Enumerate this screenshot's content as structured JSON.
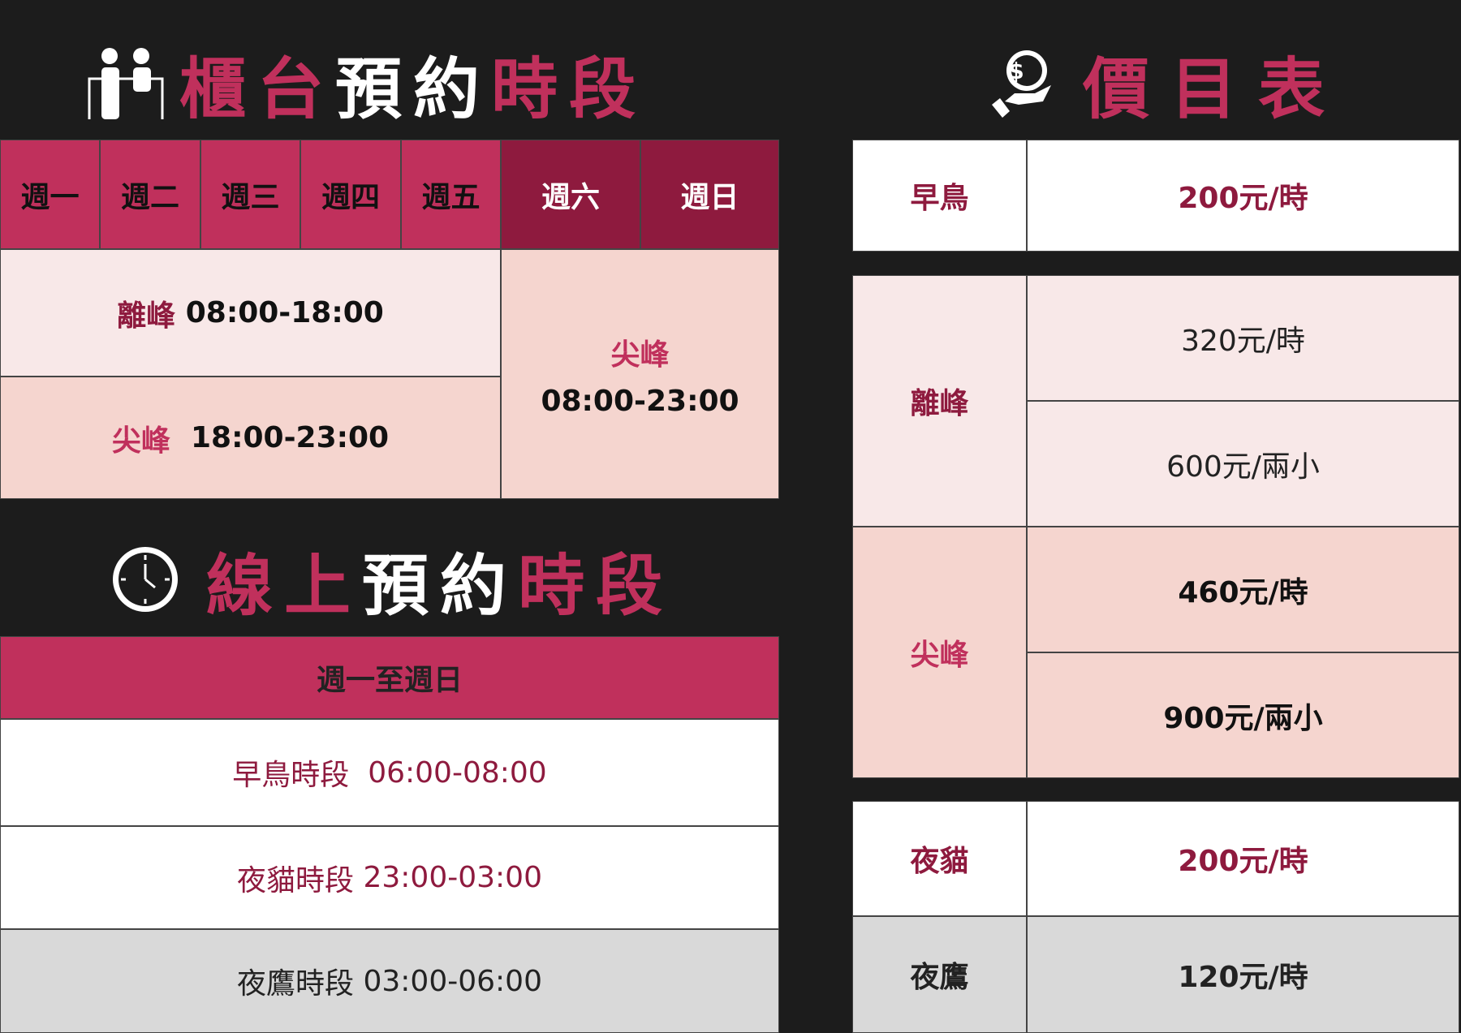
{
  "counter": {
    "title_parts": [
      "櫃",
      "台",
      "預",
      "約",
      "時",
      "段"
    ],
    "icon": "receptionist-icon",
    "days": [
      "週一",
      "週二",
      "週三",
      "週四",
      "週五",
      "週六",
      "週日"
    ],
    "offpeak": {
      "label": "離峰",
      "time": "08:00-18:00"
    },
    "peak": {
      "label": "尖峰",
      "time": "18:00-23:00"
    },
    "weekend": {
      "label": "尖峰",
      "time": "08:00-23:00"
    }
  },
  "online": {
    "title_parts": [
      "線",
      "上",
      "預",
      "約",
      "時",
      "段"
    ],
    "icon": "clock-icon",
    "header": "週一至週日",
    "rows": [
      {
        "label": "早鳥時段",
        "time": "06:00-08:00"
      },
      {
        "label": "夜貓時段",
        "time": "23:00-03:00"
      },
      {
        "label": "夜鷹時段",
        "time": "03:00-06:00"
      }
    ]
  },
  "prices": {
    "title": "價目表",
    "icon": "money-hand-icon",
    "early": {
      "label": "早鳥",
      "price": "200元/時"
    },
    "offpeak": {
      "label": "離峰",
      "prices": [
        "320元/時",
        "600元/兩小"
      ]
    },
    "peak": {
      "label": "尖峰",
      "prices": [
        "460元/時",
        "900元/兩小"
      ]
    },
    "nightcat": {
      "label": "夜貓",
      "price": "200元/時"
    },
    "nighthawk": {
      "label": "夜鷹",
      "price": "120元/時"
    }
  },
  "colors": {
    "background": "#1c1c1c",
    "accent": "#c0305c",
    "accent_dark": "#8e1a3e",
    "light": "#f8e8e8",
    "peach": "#f5d5cf",
    "gray": "#d9d9d9"
  }
}
